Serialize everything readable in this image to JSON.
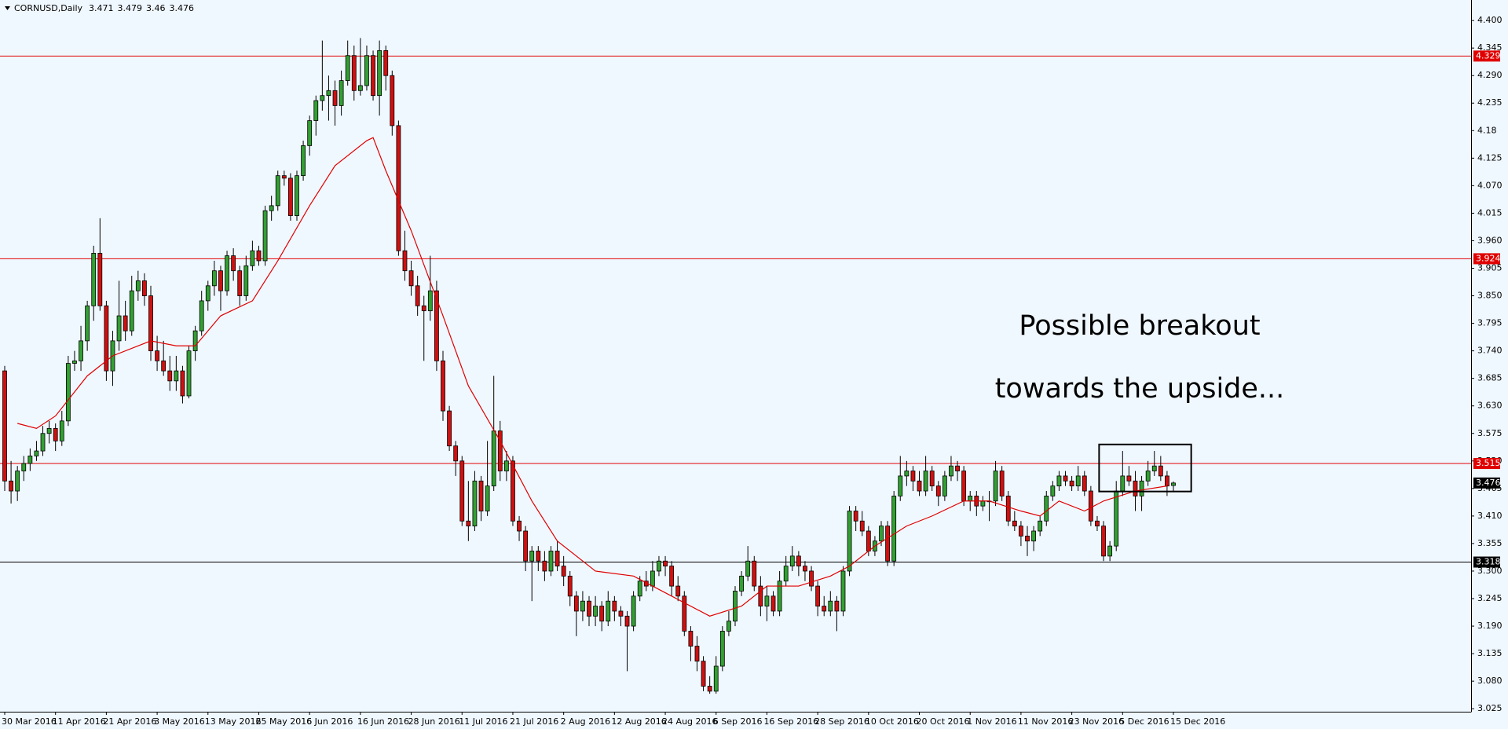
{
  "chart_data": {
    "type": "candlestick",
    "symbol": "CORNUSD,Daily",
    "up_color": "#32a032",
    "down_color": "#d01010",
    "ylim": [
      3.019,
      4.441
    ],
    "yticks": [
      {
        "value": 4.4,
        "label": "4.400"
      },
      4.345,
      {
        "value": 4.29,
        "label": "4.290"
      },
      4.235,
      4.18,
      4.125,
      {
        "value": 4.07,
        "label": "4.070"
      },
      4.015,
      {
        "value": 3.96,
        "label": "3.960"
      },
      3.905,
      {
        "value": 3.85,
        "label": "3.850"
      },
      3.795,
      {
        "value": 3.74,
        "label": "3.740"
      },
      3.685,
      {
        "value": 3.63,
        "label": "3.630"
      },
      3.575,
      {
        "value": 3.52,
        "label": "3.520"
      },
      3.465,
      {
        "value": 3.41,
        "label": "3.410"
      },
      3.355,
      {
        "value": 3.3,
        "label": "3.300"
      },
      3.245,
      {
        "value": 3.19,
        "label": "3.190"
      },
      3.135,
      {
        "value": 3.08,
        "label": "3.080"
      },
      {
        "value": 3.025,
        "label": "3.025"
      }
    ],
    "xticks": [
      {
        "value": 0,
        "label": "30 Mar 2016"
      },
      {
        "value": 8,
        "label": "11 Apr 2016"
      },
      {
        "value": 16,
        "label": "21 Apr 2016"
      },
      {
        "value": 24,
        "label": "3 May 2016"
      },
      {
        "value": 32,
        "label": "13 May 2016"
      },
      {
        "value": 40,
        "label": "25 May 2016"
      },
      {
        "value": 48,
        "label": "6 Jun 2016"
      },
      {
        "value": 56,
        "label": "16 Jun 2016"
      },
      {
        "value": 64,
        "label": "28 Jun 2016"
      },
      {
        "value": 72,
        "label": "11 Jul 2016"
      },
      {
        "value": 80,
        "label": "21 Jul 2016"
      },
      {
        "value": 88,
        "label": "2 Aug 2016"
      },
      {
        "value": 96,
        "label": "12 Aug 2016"
      },
      {
        "value": 104,
        "label": "24 Aug 2016"
      },
      {
        "value": 112,
        "label": "6 Sep 2016"
      },
      {
        "value": 120,
        "label": "16 Sep 2016"
      },
      {
        "value": 128,
        "label": "28 Sep 2016"
      },
      {
        "value": 136,
        "label": "10 Oct 2016"
      },
      {
        "value": 144,
        "label": "20 Oct 2016"
      },
      {
        "value": 152,
        "label": "1 Nov 2016"
      },
      {
        "value": 160,
        "label": "11 Nov 2016"
      },
      {
        "value": 168,
        "label": "23 Nov 2016"
      },
      {
        "value": 176,
        "label": "5 Dec 2016"
      },
      {
        "value": 184,
        "label": "15 Dec 2016"
      }
    ],
    "levels": [
      {
        "value": 4.329,
        "color": "#e00000"
      },
      {
        "value": 3.924,
        "color": "#e00000"
      },
      {
        "value": 3.515,
        "color": "#e00000"
      },
      {
        "value": 3.318,
        "color": "#000000"
      }
    ],
    "annotation": [
      "Possible breakout",
      "towards the upside..."
    ],
    "box": {
      "x": [
        172.3,
        186.8
      ],
      "y": [
        3.459,
        3.553
      ]
    },
    "ma": {
      "name": "MA",
      "color": "#e00000",
      "x": [
        2,
        5,
        8,
        13,
        17,
        23,
        27,
        30,
        34,
        39,
        43,
        48,
        52,
        57,
        58,
        60,
        64,
        69,
        73,
        78,
        83,
        87,
        93,
        99,
        105,
        111,
        116,
        120,
        125,
        130,
        133,
        137,
        142,
        146,
        151,
        155,
        160,
        163,
        166,
        170,
        173,
        178,
        183
      ],
      "values": [
        3.595,
        3.585,
        3.61,
        3.69,
        3.73,
        3.76,
        3.75,
        3.75,
        3.81,
        3.84,
        3.92,
        4.03,
        4.11,
        4.16,
        4.166,
        4.1,
        3.98,
        3.81,
        3.67,
        3.56,
        3.44,
        3.36,
        3.3,
        3.29,
        3.25,
        3.21,
        3.23,
        3.27,
        3.27,
        3.29,
        3.31,
        3.35,
        3.39,
        3.41,
        3.44,
        3.44,
        3.42,
        3.41,
        3.44,
        3.42,
        3.44,
        3.46,
        3.47
      ]
    },
    "candles": [
      [
        3.7,
        3.71,
        3.46,
        3.48
      ],
      [
        3.48,
        3.52,
        3.435,
        3.46
      ],
      [
        3.46,
        3.51,
        3.44,
        3.5
      ],
      [
        3.5,
        3.53,
        3.48,
        3.515
      ],
      [
        3.515,
        3.545,
        3.5,
        3.53
      ],
      [
        3.53,
        3.56,
        3.52,
        3.54
      ],
      [
        3.54,
        3.59,
        3.53,
        3.575
      ],
      [
        3.575,
        3.6,
        3.555,
        3.585
      ],
      [
        3.585,
        3.595,
        3.54,
        3.56
      ],
      [
        3.56,
        3.62,
        3.55,
        3.6
      ],
      [
        3.6,
        3.73,
        3.59,
        3.715
      ],
      [
        3.715,
        3.74,
        3.7,
        3.72
      ],
      [
        3.72,
        3.79,
        3.7,
        3.76
      ],
      [
        3.76,
        3.84,
        3.74,
        3.83
      ],
      [
        3.83,
        3.95,
        3.8,
        3.935
      ],
      [
        3.935,
        4.005,
        3.82,
        3.83
      ],
      [
        3.83,
        3.84,
        3.68,
        3.7
      ],
      [
        3.7,
        3.78,
        3.67,
        3.76
      ],
      [
        3.76,
        3.88,
        3.74,
        3.81
      ],
      [
        3.81,
        3.84,
        3.76,
        3.78
      ],
      [
        3.78,
        3.89,
        3.77,
        3.86
      ],
      [
        3.86,
        3.9,
        3.84,
        3.88
      ],
      [
        3.88,
        3.895,
        3.83,
        3.85
      ],
      [
        3.85,
        3.87,
        3.72,
        3.74
      ],
      [
        3.74,
        3.77,
        3.7,
        3.72
      ],
      [
        3.72,
        3.76,
        3.69,
        3.7
      ],
      [
        3.7,
        3.73,
        3.66,
        3.68
      ],
      [
        3.68,
        3.73,
        3.66,
        3.7
      ],
      [
        3.7,
        3.71,
        3.635,
        3.65
      ],
      [
        3.65,
        3.75,
        3.645,
        3.74
      ],
      [
        3.74,
        3.79,
        3.72,
        3.78
      ],
      [
        3.78,
        3.86,
        3.77,
        3.84
      ],
      [
        3.84,
        3.88,
        3.82,
        3.87
      ],
      [
        3.87,
        3.92,
        3.85,
        3.9
      ],
      [
        3.9,
        3.91,
        3.82,
        3.86
      ],
      [
        3.86,
        3.94,
        3.85,
        3.93
      ],
      [
        3.93,
        3.945,
        3.88,
        3.9
      ],
      [
        3.9,
        3.91,
        3.83,
        3.85
      ],
      [
        3.85,
        3.93,
        3.84,
        3.91
      ],
      [
        3.91,
        3.96,
        3.9,
        3.94
      ],
      [
        3.94,
        3.95,
        3.91,
        3.92
      ],
      [
        3.92,
        4.03,
        3.91,
        4.02
      ],
      [
        4.02,
        4.05,
        4.0,
        4.03
      ],
      [
        4.03,
        4.1,
        4.02,
        4.09
      ],
      [
        4.09,
        4.1,
        4.07,
        4.085
      ],
      [
        4.085,
        4.095,
        4.0,
        4.01
      ],
      [
        4.01,
        4.1,
        4.0,
        4.09
      ],
      [
        4.09,
        4.16,
        4.08,
        4.15
      ],
      [
        4.15,
        4.21,
        4.13,
        4.2
      ],
      [
        4.2,
        4.25,
        4.17,
        4.24
      ],
      [
        4.24,
        4.36,
        4.22,
        4.25
      ],
      [
        4.25,
        4.29,
        4.2,
        4.26
      ],
      [
        4.26,
        4.28,
        4.19,
        4.23
      ],
      [
        4.23,
        4.3,
        4.21,
        4.28
      ],
      [
        4.28,
        4.36,
        4.27,
        4.33
      ],
      [
        4.33,
        4.35,
        4.24,
        4.26
      ],
      [
        4.26,
        4.365,
        4.25,
        4.27
      ],
      [
        4.27,
        4.35,
        4.26,
        4.33
      ],
      [
        4.33,
        4.34,
        4.24,
        4.25
      ],
      [
        4.25,
        4.36,
        4.21,
        4.34
      ],
      [
        4.34,
        4.35,
        4.26,
        4.29
      ],
      [
        4.29,
        4.3,
        4.17,
        4.19
      ],
      [
        4.19,
        4.2,
        3.93,
        3.94
      ],
      [
        3.94,
        3.98,
        3.88,
        3.9
      ],
      [
        3.9,
        3.92,
        3.85,
        3.87
      ],
      [
        3.87,
        3.89,
        3.81,
        3.83
      ],
      [
        3.83,
        3.85,
        3.72,
        3.82
      ],
      [
        3.82,
        3.93,
        3.8,
        3.86
      ],
      [
        3.86,
        3.88,
        3.7,
        3.72
      ],
      [
        3.72,
        3.74,
        3.6,
        3.62
      ],
      [
        3.62,
        3.63,
        3.54,
        3.55
      ],
      [
        3.55,
        3.56,
        3.49,
        3.52
      ],
      [
        3.52,
        3.53,
        3.39,
        3.4
      ],
      [
        3.4,
        3.48,
        3.36,
        3.39
      ],
      [
        3.39,
        3.5,
        3.38,
        3.48
      ],
      [
        3.48,
        3.49,
        3.4,
        3.42
      ],
      [
        3.42,
        3.56,
        3.41,
        3.47
      ],
      [
        3.47,
        3.69,
        3.46,
        3.58
      ],
      [
        3.58,
        3.6,
        3.48,
        3.5
      ],
      [
        3.5,
        3.54,
        3.48,
        3.52
      ],
      [
        3.52,
        3.53,
        3.39,
        3.4
      ],
      [
        3.4,
        3.41,
        3.36,
        3.38
      ],
      [
        3.38,
        3.39,
        3.3,
        3.32
      ],
      [
        3.32,
        3.35,
        3.24,
        3.34
      ],
      [
        3.34,
        3.35,
        3.3,
        3.32
      ],
      [
        3.32,
        3.34,
        3.28,
        3.3
      ],
      [
        3.3,
        3.35,
        3.29,
        3.34
      ],
      [
        3.34,
        3.36,
        3.3,
        3.31
      ],
      [
        3.31,
        3.33,
        3.27,
        3.29
      ],
      [
        3.29,
        3.3,
        3.23,
        3.25
      ],
      [
        3.25,
        3.26,
        3.17,
        3.22
      ],
      [
        3.22,
        3.26,
        3.2,
        3.24
      ],
      [
        3.24,
        3.25,
        3.19,
        3.21
      ],
      [
        3.21,
        3.25,
        3.19,
        3.23
      ],
      [
        3.23,
        3.24,
        3.18,
        3.2
      ],
      [
        3.2,
        3.26,
        3.19,
        3.24
      ],
      [
        3.24,
        3.25,
        3.2,
        3.22
      ],
      [
        3.22,
        3.23,
        3.19,
        3.21
      ],
      [
        3.21,
        3.22,
        3.1,
        3.19
      ],
      [
        3.19,
        3.26,
        3.18,
        3.25
      ],
      [
        3.25,
        3.29,
        3.24,
        3.28
      ],
      [
        3.28,
        3.3,
        3.26,
        3.27
      ],
      [
        3.27,
        3.32,
        3.26,
        3.3
      ],
      [
        3.3,
        3.33,
        3.29,
        3.32
      ],
      [
        3.32,
        3.33,
        3.29,
        3.31
      ],
      [
        3.31,
        3.32,
        3.25,
        3.27
      ],
      [
        3.27,
        3.29,
        3.24,
        3.25
      ],
      [
        3.25,
        3.26,
        3.17,
        3.18
      ],
      [
        3.18,
        3.19,
        3.12,
        3.15
      ],
      [
        3.15,
        3.17,
        3.1,
        3.12
      ],
      [
        3.12,
        3.13,
        3.06,
        3.07
      ],
      [
        3.07,
        3.09,
        3.055,
        3.06
      ],
      [
        3.06,
        3.13,
        3.055,
        3.11
      ],
      [
        3.11,
        3.19,
        3.1,
        3.18
      ],
      [
        3.18,
        3.22,
        3.17,
        3.2
      ],
      [
        3.2,
        3.27,
        3.19,
        3.26
      ],
      [
        3.26,
        3.3,
        3.25,
        3.29
      ],
      [
        3.29,
        3.35,
        3.28,
        3.32
      ],
      [
        3.32,
        3.33,
        3.26,
        3.27
      ],
      [
        3.27,
        3.29,
        3.21,
        3.23
      ],
      [
        3.23,
        3.27,
        3.2,
        3.25
      ],
      [
        3.25,
        3.26,
        3.21,
        3.22
      ],
      [
        3.22,
        3.3,
        3.21,
        3.28
      ],
      [
        3.28,
        3.33,
        3.27,
        3.31
      ],
      [
        3.31,
        3.35,
        3.3,
        3.33
      ],
      [
        3.33,
        3.34,
        3.29,
        3.31
      ],
      [
        3.31,
        3.32,
        3.28,
        3.3
      ],
      [
        3.3,
        3.31,
        3.26,
        3.27
      ],
      [
        3.27,
        3.28,
        3.21,
        3.23
      ],
      [
        3.23,
        3.25,
        3.21,
        3.22
      ],
      [
        3.22,
        3.26,
        3.21,
        3.24
      ],
      [
        3.24,
        3.25,
        3.18,
        3.22
      ],
      [
        3.22,
        3.31,
        3.21,
        3.3
      ],
      [
        3.3,
        3.43,
        3.29,
        3.42
      ],
      [
        3.42,
        3.43,
        3.38,
        3.4
      ],
      [
        3.4,
        3.42,
        3.37,
        3.38
      ],
      [
        3.38,
        3.39,
        3.33,
        3.34
      ],
      [
        3.34,
        3.37,
        3.33,
        3.36
      ],
      [
        3.36,
        3.4,
        3.35,
        3.39
      ],
      [
        3.39,
        3.4,
        3.31,
        3.32
      ],
      [
        3.32,
        3.46,
        3.31,
        3.45
      ],
      [
        3.45,
        3.53,
        3.44,
        3.49
      ],
      [
        3.49,
        3.52,
        3.47,
        3.5
      ],
      [
        3.5,
        3.51,
        3.46,
        3.48
      ],
      [
        3.48,
        3.5,
        3.45,
        3.46
      ],
      [
        3.46,
        3.53,
        3.45,
        3.5
      ],
      [
        3.5,
        3.51,
        3.46,
        3.47
      ],
      [
        3.47,
        3.48,
        3.43,
        3.45
      ],
      [
        3.45,
        3.5,
        3.44,
        3.49
      ],
      [
        3.49,
        3.53,
        3.48,
        3.51
      ],
      [
        3.51,
        3.52,
        3.48,
        3.5
      ],
      [
        3.5,
        3.51,
        3.43,
        3.44
      ],
      [
        3.44,
        3.46,
        3.42,
        3.45
      ],
      [
        3.45,
        3.46,
        3.41,
        3.43
      ],
      [
        3.43,
        3.45,
        3.42,
        3.44
      ],
      [
        3.44,
        3.46,
        3.4,
        3.44
      ],
      [
        3.44,
        3.52,
        3.43,
        3.5
      ],
      [
        3.5,
        3.51,
        3.44,
        3.45
      ],
      [
        3.45,
        3.46,
        3.39,
        3.4
      ],
      [
        3.4,
        3.42,
        3.38,
        3.39
      ],
      [
        3.39,
        3.4,
        3.35,
        3.37
      ],
      [
        3.37,
        3.39,
        3.33,
        3.36
      ],
      [
        3.36,
        3.39,
        3.34,
        3.38
      ],
      [
        3.38,
        3.41,
        3.37,
        3.4
      ],
      [
        3.4,
        3.46,
        3.39,
        3.45
      ],
      [
        3.45,
        3.48,
        3.44,
        3.47
      ],
      [
        3.47,
        3.5,
        3.46,
        3.49
      ],
      [
        3.49,
        3.5,
        3.47,
        3.48
      ],
      [
        3.48,
        3.49,
        3.46,
        3.47
      ],
      [
        3.47,
        3.51,
        3.46,
        3.49
      ],
      [
        3.49,
        3.5,
        3.45,
        3.46
      ],
      [
        3.46,
        3.47,
        3.39,
        3.4
      ],
      [
        3.4,
        3.41,
        3.38,
        3.39
      ],
      [
        3.39,
        3.4,
        3.32,
        3.33
      ],
      [
        3.33,
        3.36,
        3.32,
        3.35
      ],
      [
        3.35,
        3.48,
        3.34,
        3.46
      ],
      [
        3.46,
        3.54,
        3.45,
        3.49
      ],
      [
        3.49,
        3.51,
        3.47,
        3.48
      ],
      [
        3.48,
        3.5,
        3.42,
        3.45
      ],
      [
        3.45,
        3.49,
        3.42,
        3.48
      ],
      [
        3.48,
        3.52,
        3.47,
        3.5
      ],
      [
        3.5,
        3.54,
        3.49,
        3.51
      ],
      [
        3.51,
        3.53,
        3.48,
        3.49
      ],
      [
        3.49,
        3.5,
        3.45,
        3.47
      ],
      [
        3.471,
        3.479,
        3.46,
        3.476
      ]
    ]
  }
}
